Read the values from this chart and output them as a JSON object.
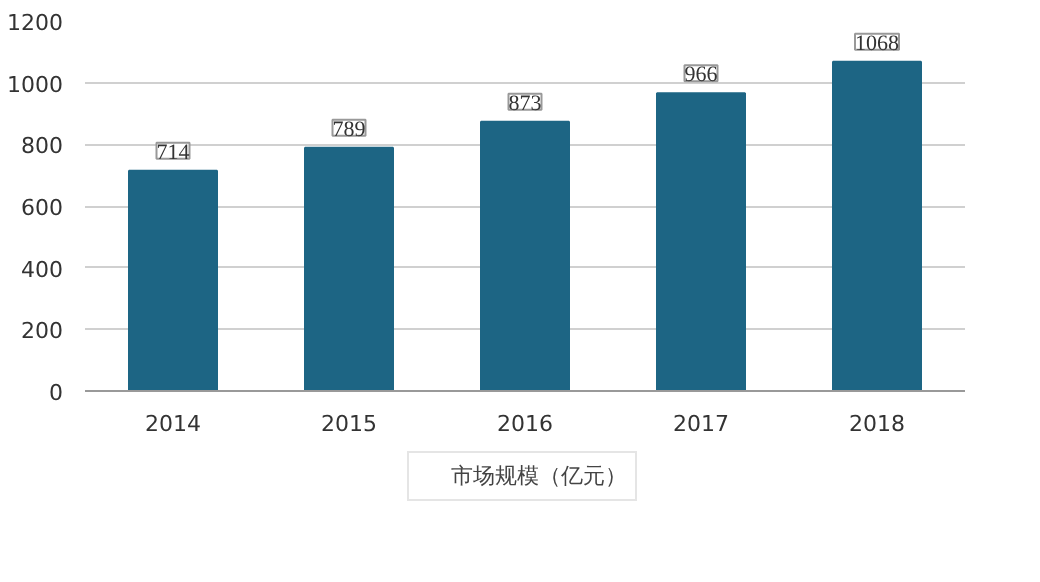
{
  "chart_data": {
    "type": "bar",
    "categories": [
      "2014",
      "2015",
      "2016",
      "2017",
      "2018"
    ],
    "series": [
      {
        "name": "市场规模（亿元）",
        "color": "#1d6584",
        "values": [
          714,
          789,
          873,
          966,
          1068
        ]
      }
    ],
    "ylim": [
      0,
      1200
    ],
    "yticks": [
      0,
      200,
      400,
      600,
      800,
      1000,
      1200
    ],
    "grid": "y",
    "legend": "bottom",
    "data_labels": true
  }
}
